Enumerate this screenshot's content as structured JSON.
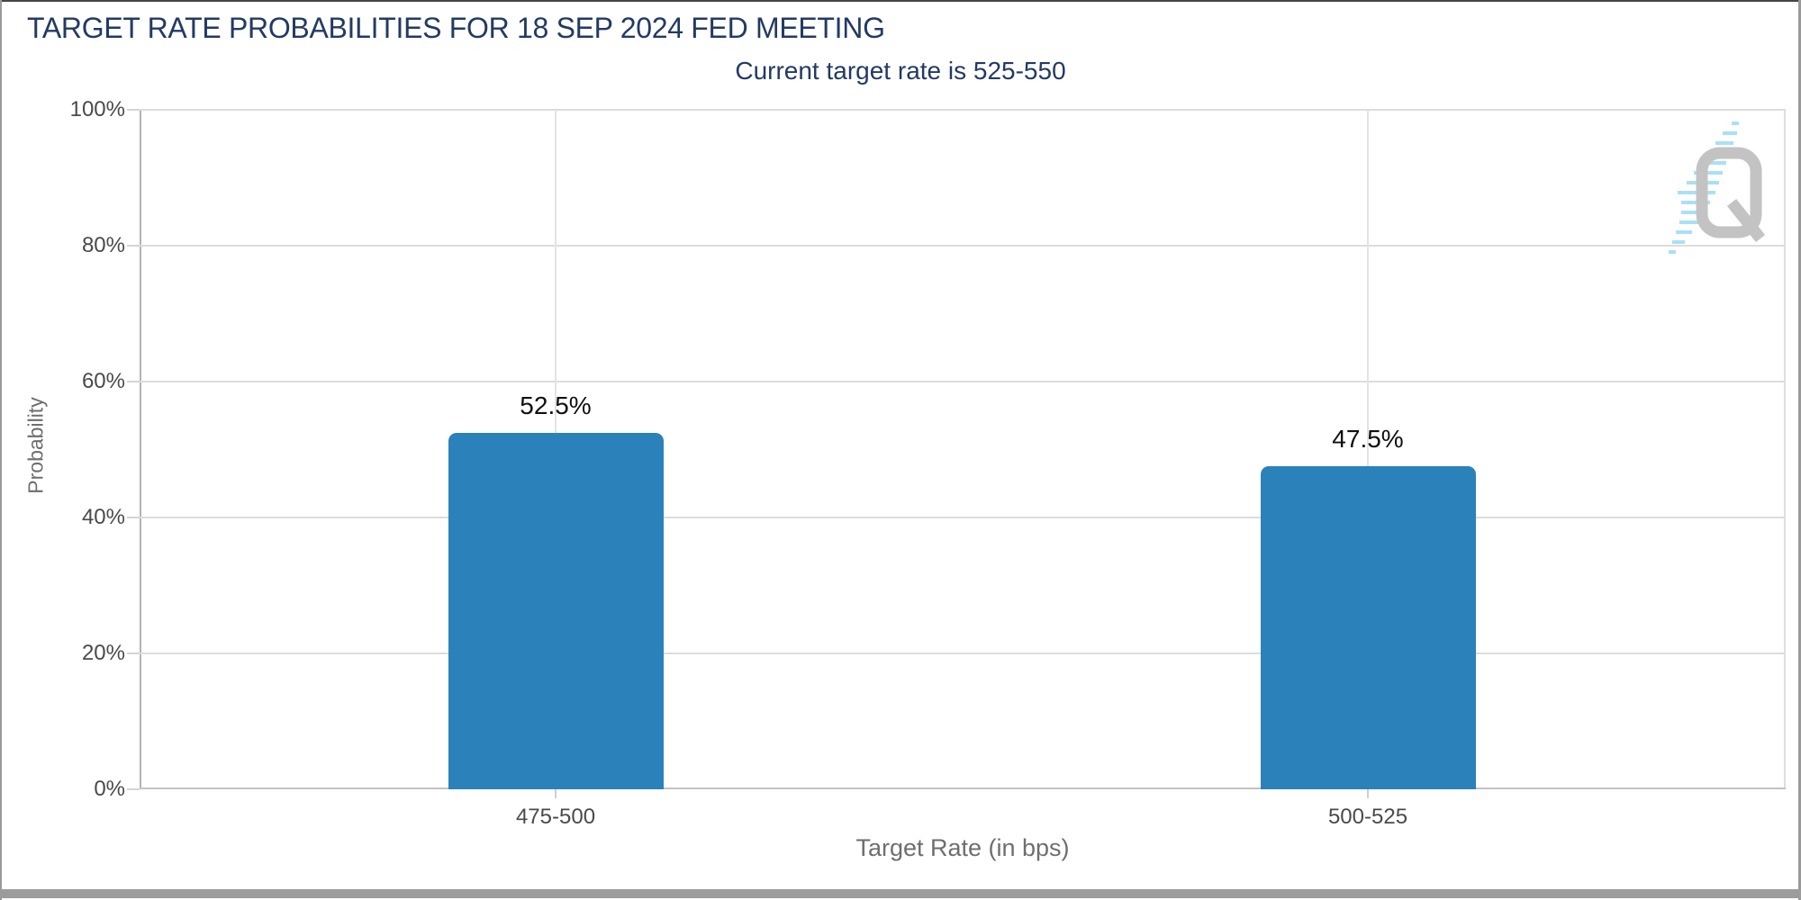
{
  "header": {
    "title": "TARGET RATE PROBABILITIES FOR 18 SEP 2024 FED MEETING",
    "subtitle": "Current target rate is 525-550"
  },
  "chart_data": {
    "type": "bar",
    "title": "TARGET RATE PROBABILITIES FOR 18 SEP 2024 FED MEETING",
    "subtitle": "Current target rate is 525-550",
    "categories": [
      "475-500",
      "500-525"
    ],
    "values": [
      52.5,
      47.5
    ],
    "value_labels": [
      "52.5%",
      "47.5%"
    ],
    "xlabel": "Target Rate (in bps)",
    "ylabel": "Probability",
    "ylim": [
      0,
      100
    ],
    "ytick_step": 20,
    "ytick_labels": [
      "0%",
      "20%",
      "40%",
      "60%",
      "80%",
      "100%"
    ],
    "bar_color": "#2b81ba",
    "grid": true,
    "legend": false
  },
  "colors": {
    "title_text": "#233a63",
    "bar": "#2b81ba",
    "grid_line": "#dcdcdc",
    "axis_line": "#b3b3b3",
    "tick_text": "#4a4a4a",
    "axis_title_text": "#6e6e6e"
  },
  "watermark": {
    "letter": "Q"
  }
}
